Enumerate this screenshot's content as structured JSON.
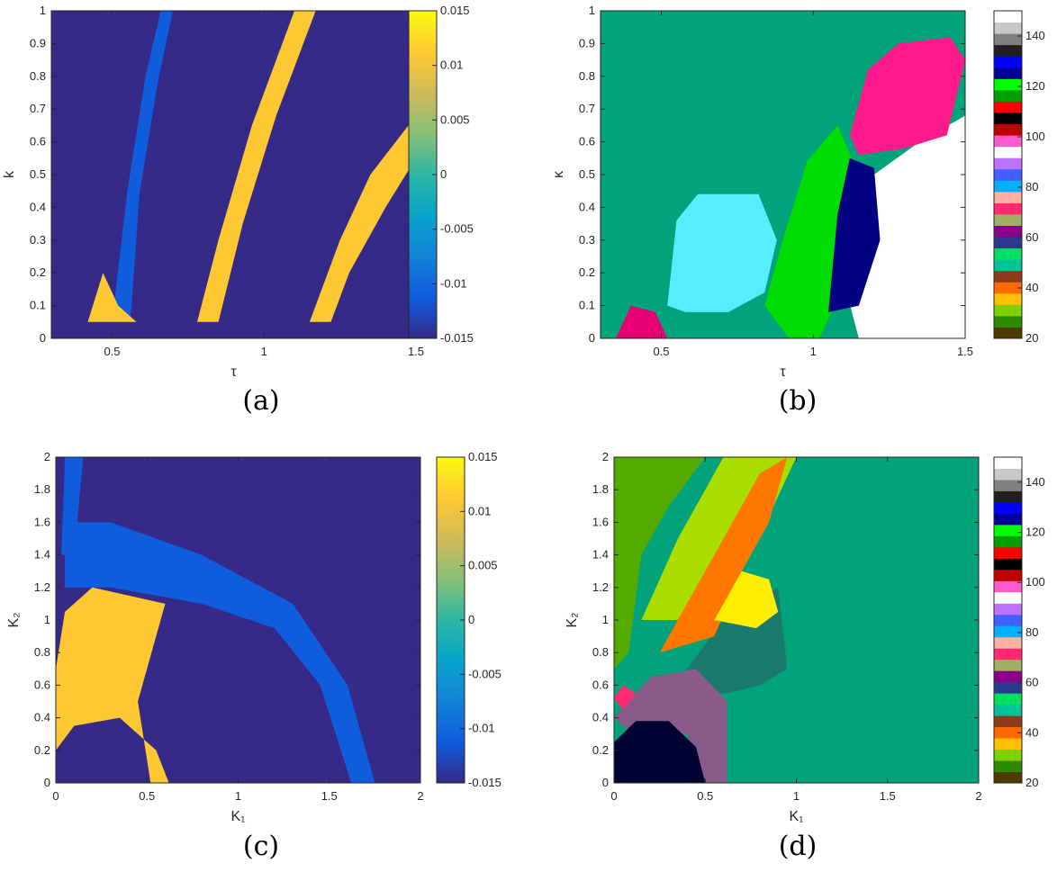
{
  "chart_data": [
    {
      "panel": "a",
      "type": "heatmap",
      "caption": "(a)",
      "xlabel": "τ",
      "ylabel": "k",
      "xlim": [
        0.3,
        1.5
      ],
      "ylim": [
        0,
        1
      ],
      "xticks": [
        0.5,
        1,
        1.5
      ],
      "yticks": [
        0,
        0.1,
        0.2,
        0.3,
        0.4,
        0.5,
        0.6,
        0.7,
        0.8,
        0.9,
        1
      ],
      "colorbar": {
        "min": -0.015,
        "max": 0.015,
        "ticks": [
          "-0.015",
          "-0.01",
          "-0.005",
          "0",
          "0.005",
          "0.01",
          "0.015"
        ],
        "colormap": "parula"
      },
      "regions": [
        {
          "kind": "background",
          "value": -0.015
        },
        {
          "kind": "band",
          "value": -0.011,
          "path": [
            [
              0.5,
              0.05
            ],
            [
              0.55,
              0.45
            ],
            [
              0.61,
              0.8
            ],
            [
              0.66,
              1.0
            ],
            [
              0.7,
              1.0
            ],
            [
              0.65,
              0.78
            ],
            [
              0.59,
              0.44
            ],
            [
              0.56,
              0.05
            ]
          ]
        },
        {
          "kind": "band",
          "value": 0.012,
          "path": [
            [
              0.78,
              0.05
            ],
            [
              0.85,
              0.3
            ],
            [
              0.96,
              0.65
            ],
            [
              1.1,
              1.0
            ],
            [
              1.17,
              1.0
            ],
            [
              1.04,
              0.68
            ],
            [
              0.93,
              0.35
            ],
            [
              0.85,
              0.05
            ]
          ]
        },
        {
          "kind": "band",
          "value": 0.011,
          "path": [
            [
              1.15,
              0.05
            ],
            [
              1.25,
              0.3
            ],
            [
              1.35,
              0.5
            ],
            [
              1.5,
              0.68
            ],
            [
              1.5,
              0.55
            ],
            [
              1.4,
              0.4
            ],
            [
              1.28,
              0.2
            ],
            [
              1.22,
              0.05
            ]
          ]
        },
        {
          "kind": "patch",
          "value": 0.01,
          "path": [
            [
              0.42,
              0.05
            ],
            [
              0.47,
              0.2
            ],
            [
              0.52,
              0.1
            ],
            [
              0.58,
              0.05
            ]
          ]
        }
      ]
    },
    {
      "panel": "b",
      "type": "heatmap",
      "caption": "(b)",
      "xlabel": "τ",
      "ylabel": "κ",
      "xlim": [
        0.3,
        1.5
      ],
      "ylim": [
        0,
        1
      ],
      "xticks": [
        0.5,
        1,
        1.5
      ],
      "yticks": [
        0,
        0.1,
        0.2,
        0.3,
        0.4,
        0.5,
        0.6,
        0.7,
        0.8,
        0.9,
        1
      ],
      "colorbar": {
        "min": 20,
        "max": 150,
        "ticks": [
          "20",
          "40",
          "60",
          "80",
          "100",
          "120",
          "140"
        ],
        "colormap": "lines"
      },
      "regions": [
        {
          "kind": "background",
          "color": "#00a37a"
        },
        {
          "kind": "patch",
          "color": "#ffffff",
          "path": [
            [
              1.05,
              0.35
            ],
            [
              1.2,
              0.5
            ],
            [
              1.35,
              0.6
            ],
            [
              1.5,
              0.68
            ],
            [
              1.5,
              0.0
            ],
            [
              1.15,
              0.0
            ]
          ]
        },
        {
          "kind": "patch",
          "color": "#55eeff",
          "path": [
            [
              0.52,
              0.1
            ],
            [
              0.55,
              0.36
            ],
            [
              0.62,
              0.44
            ],
            [
              0.82,
              0.44
            ],
            [
              0.88,
              0.3
            ],
            [
              0.84,
              0.14
            ],
            [
              0.72,
              0.08
            ],
            [
              0.58,
              0.08
            ]
          ]
        },
        {
          "kind": "patch",
          "color": "#00dd00",
          "path": [
            [
              0.84,
              0.1
            ],
            [
              0.9,
              0.3
            ],
            [
              0.98,
              0.54
            ],
            [
              1.08,
              0.65
            ],
            [
              1.15,
              0.5
            ],
            [
              1.12,
              0.2
            ],
            [
              1.02,
              0.0
            ],
            [
              0.92,
              0.0
            ]
          ]
        },
        {
          "kind": "patch",
          "color": "#000080",
          "path": [
            [
              1.05,
              0.08
            ],
            [
              1.08,
              0.38
            ],
            [
              1.12,
              0.55
            ],
            [
              1.2,
              0.52
            ],
            [
              1.22,
              0.3
            ],
            [
              1.15,
              0.1
            ]
          ]
        },
        {
          "kind": "patch",
          "color": "#ff1a8c",
          "path": [
            [
              1.12,
              0.62
            ],
            [
              1.18,
              0.82
            ],
            [
              1.28,
              0.9
            ],
            [
              1.45,
              0.92
            ],
            [
              1.5,
              0.85
            ],
            [
              1.44,
              0.62
            ],
            [
              1.3,
              0.58
            ],
            [
              1.15,
              0.56
            ]
          ]
        },
        {
          "kind": "patch",
          "color": "#e60073",
          "path": [
            [
              0.35,
              0.0
            ],
            [
              0.4,
              0.1
            ],
            [
              0.48,
              0.08
            ],
            [
              0.52,
              0.0
            ]
          ]
        }
      ]
    },
    {
      "panel": "c",
      "type": "heatmap",
      "caption": "(c)",
      "xlabel": "K₁",
      "ylabel": "K₂",
      "xlim": [
        0,
        2
      ],
      "ylim": [
        0,
        2
      ],
      "xticks": [
        0,
        0.5,
        1,
        1.5,
        2
      ],
      "yticks": [
        0,
        0.2,
        0.4,
        0.6,
        0.8,
        1,
        1.2,
        1.4,
        1.6,
        1.8,
        2
      ],
      "colorbar": {
        "min": -0.015,
        "max": 0.015,
        "ticks": [
          "-0.015",
          "-0.01",
          "-0.005",
          "0",
          "0.005",
          "0.01",
          "0.015"
        ],
        "colormap": "parula"
      },
      "regions": [
        {
          "kind": "background",
          "value": -0.015
        },
        {
          "kind": "band",
          "value": -0.01,
          "path": [
            [
              0.05,
              1.6
            ],
            [
              0.3,
              1.6
            ],
            [
              0.8,
              1.4
            ],
            [
              1.3,
              1.1
            ],
            [
              1.6,
              0.6
            ],
            [
              1.75,
              0.0
            ],
            [
              1.62,
              0.0
            ],
            [
              1.45,
              0.6
            ],
            [
              1.2,
              0.95
            ],
            [
              0.8,
              1.1
            ],
            [
              0.3,
              1.2
            ],
            [
              0.05,
              1.2
            ]
          ]
        },
        {
          "kind": "band",
          "value": -0.011,
          "path": [
            [
              0.05,
              2.0
            ],
            [
              0.15,
              2.0
            ],
            [
              0.1,
              1.4
            ],
            [
              0.03,
              1.4
            ]
          ]
        },
        {
          "kind": "patch",
          "value": 0.01,
          "path": [
            [
              0.0,
              0.2
            ],
            [
              0.1,
              0.35
            ],
            [
              0.35,
              0.4
            ],
            [
              0.55,
              0.2
            ],
            [
              0.62,
              0.0
            ],
            [
              0.52,
              0.0
            ],
            [
              0.45,
              0.5
            ],
            [
              0.6,
              1.1
            ],
            [
              0.2,
              1.2
            ],
            [
              0.05,
              1.05
            ],
            [
              0.0,
              0.7
            ]
          ]
        },
        {
          "kind": "patch",
          "value": -0.014,
          "path": [
            [
              0.08,
              0.0
            ],
            [
              0.12,
              0.25
            ],
            [
              0.25,
              0.32
            ],
            [
              0.42,
              0.25
            ],
            [
              0.5,
              0.1
            ],
            [
              0.5,
              0.0
            ]
          ]
        }
      ]
    },
    {
      "panel": "d",
      "type": "heatmap",
      "caption": "(d)",
      "xlabel": "K₁",
      "ylabel": "K₂",
      "xlim": [
        0,
        2
      ],
      "ylim": [
        0,
        2
      ],
      "xticks": [
        0,
        0.5,
        1,
        1.5,
        2
      ],
      "yticks": [
        0,
        0.2,
        0.4,
        0.6,
        0.8,
        1,
        1.2,
        1.4,
        1.6,
        1.8,
        2
      ],
      "colorbar": {
        "min": 20,
        "max": 150,
        "ticks": [
          "20",
          "40",
          "60",
          "80",
          "100",
          "120",
          "140"
        ],
        "colormap": "lines"
      },
      "regions": [
        {
          "kind": "background",
          "color": "#00a37a"
        },
        {
          "kind": "patch",
          "color": "#55aa00",
          "path": [
            [
              0.0,
              2.0
            ],
            [
              0.5,
              2.0
            ],
            [
              0.3,
              1.7
            ],
            [
              0.15,
              1.4
            ],
            [
              0.08,
              0.8
            ],
            [
              0.0,
              0.7
            ]
          ]
        },
        {
          "kind": "patch",
          "color": "#1a7a6e",
          "path": [
            [
              0.3,
              0.55
            ],
            [
              0.6,
              1.0
            ],
            [
              0.9,
              1.2
            ],
            [
              0.95,
              0.7
            ],
            [
              0.8,
              0.6
            ],
            [
              0.62,
              0.55
            ]
          ]
        },
        {
          "kind": "patch",
          "color": "#aadd00",
          "path": [
            [
              0.15,
              1.0
            ],
            [
              0.35,
              1.5
            ],
            [
              0.6,
              2.0
            ],
            [
              1.0,
              2.0
            ],
            [
              0.75,
              1.4
            ],
            [
              0.55,
              1.0
            ]
          ]
        },
        {
          "kind": "patch",
          "color": "#ff7700",
          "path": [
            [
              0.25,
              0.8
            ],
            [
              0.45,
              1.2
            ],
            [
              0.8,
              1.9
            ],
            [
              0.95,
              2.0
            ],
            [
              0.85,
              1.6
            ],
            [
              0.7,
              1.3
            ],
            [
              0.55,
              0.9
            ]
          ]
        },
        {
          "kind": "patch",
          "color": "#ffee00",
          "path": [
            [
              0.55,
              1.0
            ],
            [
              0.7,
              1.3
            ],
            [
              0.85,
              1.25
            ],
            [
              0.9,
              1.05
            ],
            [
              0.78,
              0.95
            ]
          ]
        },
        {
          "kind": "patch",
          "color": "#8a5a8a",
          "path": [
            [
              0.0,
              0.4
            ],
            [
              0.2,
              0.65
            ],
            [
              0.45,
              0.7
            ],
            [
              0.62,
              0.5
            ],
            [
              0.62,
              0.0
            ],
            [
              0.5,
              0.0
            ],
            [
              0.4,
              0.3
            ],
            [
              0.1,
              0.3
            ]
          ]
        },
        {
          "kind": "patch",
          "color": "#000033",
          "path": [
            [
              0.0,
              0.0
            ],
            [
              0.0,
              0.25
            ],
            [
              0.12,
              0.38
            ],
            [
              0.3,
              0.38
            ],
            [
              0.45,
              0.22
            ],
            [
              0.5,
              0.0
            ]
          ]
        },
        {
          "kind": "patch",
          "color": "#ff2a70",
          "path": [
            [
              0.0,
              0.52
            ],
            [
              0.05,
              0.6
            ],
            [
              0.12,
              0.55
            ],
            [
              0.05,
              0.45
            ]
          ]
        }
      ]
    }
  ],
  "colors": {
    "axis": "#262626",
    "parula": [
      "#352a87",
      "#0f5cdd",
      "#1481d6",
      "#06a4ca",
      "#2eb7a4",
      "#87bf77",
      "#d1bb59",
      "#fec832",
      "#f9fb0e"
    ],
    "lines_colormap": [
      "#4d3a00",
      "#2e8b00",
      "#7fd000",
      "#ffc000",
      "#ff6a00",
      "#8b3a1a",
      "#00c39a",
      "#00e060",
      "#2a3a8a",
      "#8a008a",
      "#a0b060",
      "#ff2a70",
      "#ffb0a0",
      "#00b0ff",
      "#4060ff",
      "#c070ff",
      "#ffffff",
      "#ff5ad0",
      "#c00000",
      "#000000",
      "#ff0000",
      "#00a000",
      "#00ff00",
      "#000099",
      "#0000ff",
      "#202020",
      "#808080",
      "#c8c8c8",
      "#ffffff"
    ]
  }
}
